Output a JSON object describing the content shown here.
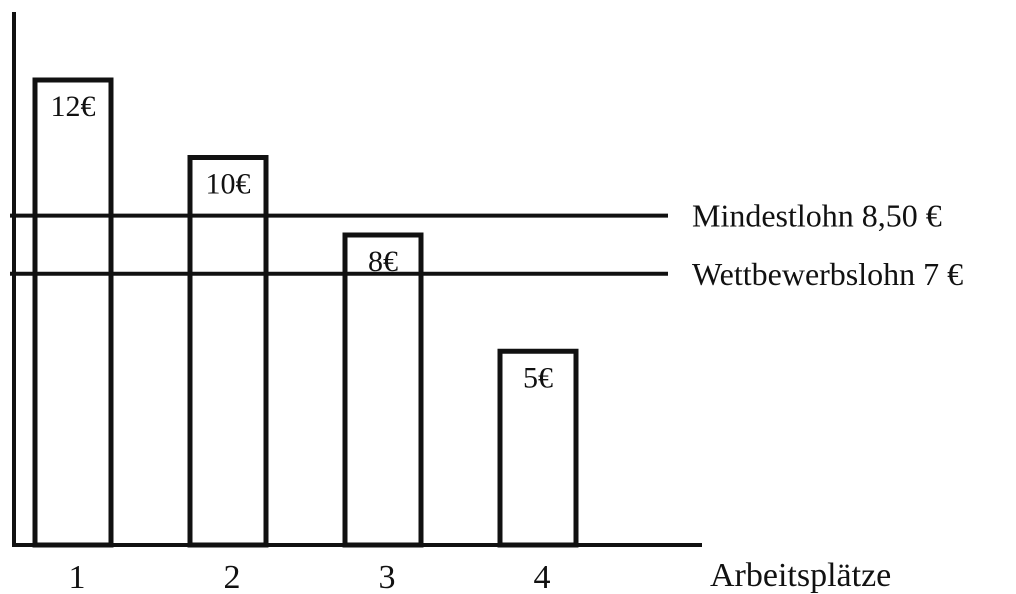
{
  "chart_data": {
    "type": "bar",
    "categories": [
      "1",
      "2",
      "3",
      "4"
    ],
    "values": [
      12,
      10,
      8,
      5
    ],
    "value_labels": [
      "12€",
      "10€",
      "8€",
      "5€"
    ],
    "xlabel": "Arbeitsplätze",
    "ylabel": "",
    "title": "",
    "ylim": [
      0,
      13
    ],
    "grid": false,
    "reference_lines": [
      {
        "value": 8.5,
        "label": "Mindestlohn 8,50 €"
      },
      {
        "value": 7,
        "label": "Wettbewerbslohn 7 €"
      }
    ]
  }
}
